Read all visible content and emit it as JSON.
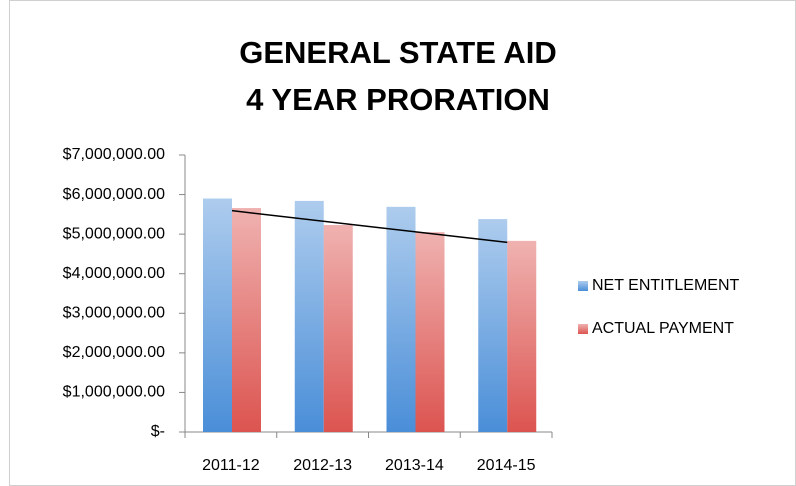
{
  "chart_data": {
    "type": "bar",
    "title": [
      "GENERAL STATE AID",
      "4 YEAR PRORATION"
    ],
    "categories": [
      "2011-12",
      "2012-13",
      "2013-14",
      "2014-15"
    ],
    "series": [
      {
        "name": "NET ENTITLEMENT",
        "color": "#4a8ed8",
        "values": [
          5900000,
          5840000,
          5690000,
          5380000
        ]
      },
      {
        "name": "ACTUAL PAYMENT",
        "color": "#dc5450",
        "values": [
          5660000,
          5230000,
          5050000,
          4830000
        ],
        "trendline": "linear",
        "trendline_color": "#000000"
      }
    ],
    "ylim": [
      0,
      7000000
    ],
    "yticks": [
      {
        "value": 0,
        "label": "$-"
      },
      {
        "value": 1000000,
        "label": "$1,000,000.00"
      },
      {
        "value": 2000000,
        "label": "$2,000,000.00"
      },
      {
        "value": 3000000,
        "label": "$3,000,000.00"
      },
      {
        "value": 4000000,
        "label": "$4,000,000.00"
      },
      {
        "value": 5000000,
        "label": "$5,000,000.00"
      },
      {
        "value": 6000000,
        "label": "$6,000,000.00"
      },
      {
        "value": 7000000,
        "label": "$7,000,000.00"
      }
    ],
    "grid": false,
    "legend": "right"
  }
}
